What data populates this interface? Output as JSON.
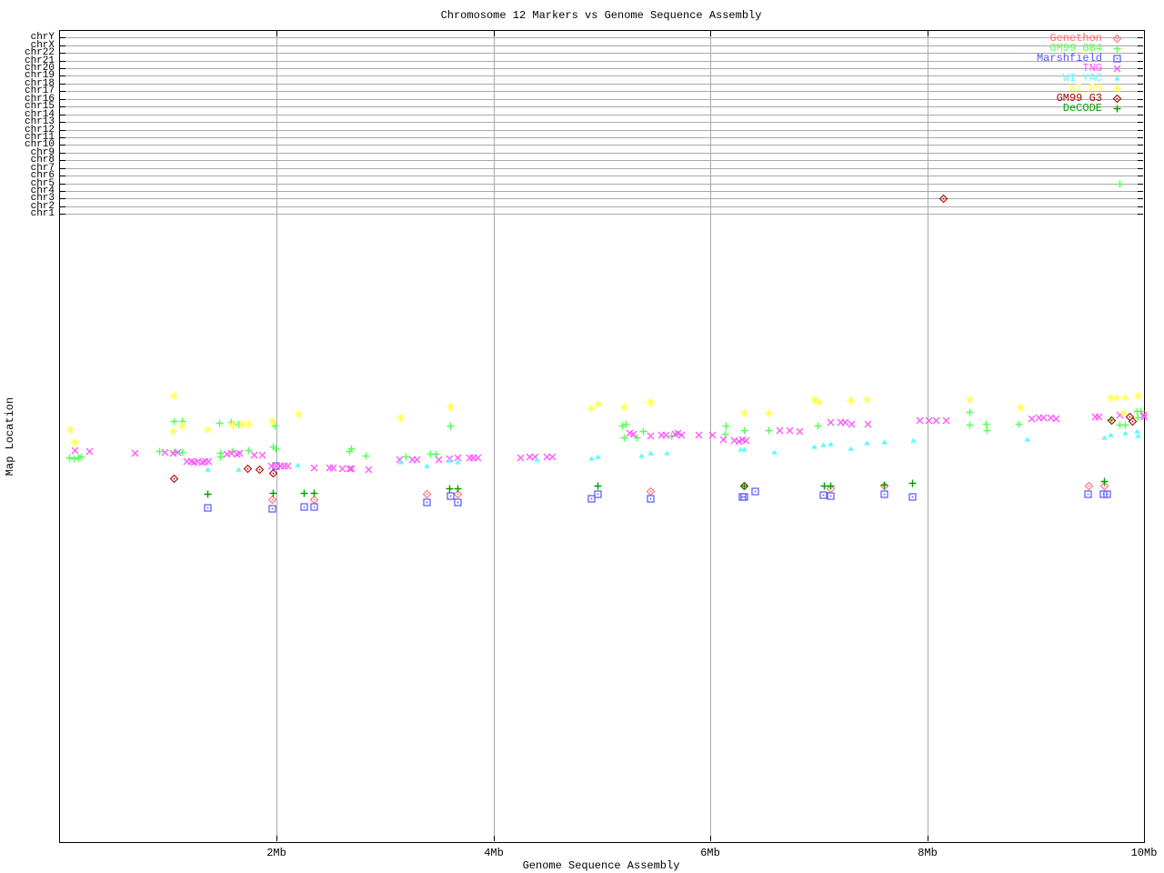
{
  "chart_data": {
    "type": "scatter",
    "title": "Chromosome 12 Markers vs Genome Sequence Assembly",
    "xlabel": "Genome Sequence Assembly",
    "ylabel": "Map Location",
    "x_unit": "Mb",
    "x_range_mb": [
      0,
      10
    ],
    "x_ticks": [
      {
        "label": "2Mb",
        "mb": 2
      },
      {
        "label": "4Mb",
        "mb": 4
      },
      {
        "label": "6Mb",
        "mb": 6
      },
      {
        "label": "8Mb",
        "mb": 8
      },
      {
        "label": "10Mb",
        "mb": 10
      }
    ],
    "x_gridlines_mb": [
      2,
      4,
      6,
      8
    ],
    "grid": true,
    "legend_position": "top-right",
    "y_note": "Upper band rows are chromosome assignments; lower scatter band has no numeric y ticks, y given as screen px",
    "chromosome_rows": [
      "chrY",
      "chrX",
      "chr22",
      "chr21",
      "chr20",
      "chr19",
      "chr18",
      "chr17",
      "chr16",
      "chr15",
      "chr14",
      "chr13",
      "chr12",
      "chr11",
      "chr10",
      "chr9",
      "chr8",
      "chr7",
      "chr6",
      "chr5",
      "chr4",
      "chr3",
      "chr2",
      "chr1"
    ],
    "series": [
      {
        "name": "Genethon",
        "color": "#ff6b6b",
        "marker": "diamond-dot",
        "points": [
          [
            1.96,
            549
          ],
          [
            2.34,
            549
          ],
          [
            3.38,
            543
          ],
          [
            3.67,
            543
          ],
          [
            5.45,
            540
          ],
          [
            7.11,
            537
          ],
          [
            7.6,
            534
          ],
          [
            9.49,
            534
          ],
          [
            9.63,
            534
          ]
        ]
      },
      {
        "name": "GM99 GB4",
        "color": "#55ff55",
        "marker": "plus",
        "points": [
          [
            0.09,
            503
          ],
          [
            0.13,
            504
          ],
          [
            0.17,
            503
          ],
          [
            0.2,
            502
          ],
          [
            0.92,
            496
          ],
          [
            1.05,
            463
          ],
          [
            1.05,
            497
          ],
          [
            1.13,
            463
          ],
          [
            1.13,
            497
          ],
          [
            1.47,
            465
          ],
          [
            1.48,
            498
          ],
          [
            1.48,
            502
          ],
          [
            1.58,
            464
          ],
          [
            1.59,
            496
          ],
          [
            1.65,
            466
          ],
          [
            1.74,
            495
          ],
          [
            1.97,
            491
          ],
          [
            1.98,
            468
          ],
          [
            1.99,
            493
          ],
          [
            2.67,
            496
          ],
          [
            2.69,
            493
          ],
          [
            2.82,
            501
          ],
          [
            3.19,
            502
          ],
          [
            3.42,
            499
          ],
          [
            3.47,
            499
          ],
          [
            3.6,
            468
          ],
          [
            5.19,
            468
          ],
          [
            5.22,
            466
          ],
          [
            5.2,
            481
          ],
          [
            5.32,
            481
          ],
          [
            5.38,
            474
          ],
          [
            5.64,
            479
          ],
          [
            6.13,
            477
          ],
          [
            6.14,
            468
          ],
          [
            6.31,
            473
          ],
          [
            6.54,
            473
          ],
          [
            6.99,
            468
          ],
          [
            8.39,
            453
          ],
          [
            8.39,
            467
          ],
          [
            8.54,
            466
          ],
          [
            8.55,
            473
          ],
          [
            8.84,
            466
          ],
          [
            9.69,
            461
          ],
          [
            9.77,
            467
          ],
          [
            9.82,
            467
          ],
          [
            9.93,
            452
          ],
          [
            9.97,
            452
          ],
          [
            9.94,
            459
          ]
        ]
      },
      {
        "name": "Marshfield",
        "color": "#5555ff",
        "marker": "square-dot",
        "points": [
          [
            1.36,
            558
          ],
          [
            1.96,
            559
          ],
          [
            1.99,
            512
          ],
          [
            2.25,
            557
          ],
          [
            2.34,
            557
          ],
          [
            3.38,
            552
          ],
          [
            3.6,
            545
          ],
          [
            3.67,
            552
          ],
          [
            4.9,
            548
          ],
          [
            4.96,
            543
          ],
          [
            5.45,
            548
          ],
          [
            6.29,
            546
          ],
          [
            6.31,
            546
          ],
          [
            6.41,
            540
          ],
          [
            7.04,
            544
          ],
          [
            7.11,
            545
          ],
          [
            7.6,
            543
          ],
          [
            7.86,
            546
          ],
          [
            9.48,
            543
          ],
          [
            9.62,
            543
          ],
          [
            9.66,
            543
          ]
        ]
      },
      {
        "name": "TNG",
        "color": "#ff55ff",
        "marker": "x",
        "points": [
          [
            0.14,
            495
          ],
          [
            0.27,
            496
          ],
          [
            0.69,
            498
          ],
          [
            0.97,
            497
          ],
          [
            1.04,
            498
          ],
          [
            1.09,
            497
          ],
          [
            1.17,
            507
          ],
          [
            1.21,
            507
          ],
          [
            1.24,
            508
          ],
          [
            1.27,
            507
          ],
          [
            1.31,
            508
          ],
          [
            1.34,
            507
          ],
          [
            1.37,
            507
          ],
          [
            1.54,
            499
          ],
          [
            1.58,
            498
          ],
          [
            1.63,
            499
          ],
          [
            1.66,
            498
          ],
          [
            1.79,
            500
          ],
          [
            1.87,
            500
          ],
          [
            1.95,
            512
          ],
          [
            1.99,
            512
          ],
          [
            2.03,
            512
          ],
          [
            2.07,
            512
          ],
          [
            2.1,
            512
          ],
          [
            2.34,
            514
          ],
          [
            2.49,
            514
          ],
          [
            2.52,
            514
          ],
          [
            2.6,
            515
          ],
          [
            2.67,
            515
          ],
          [
            2.69,
            515
          ],
          [
            2.85,
            516
          ],
          [
            3.13,
            505
          ],
          [
            3.25,
            505
          ],
          [
            3.29,
            505
          ],
          [
            3.49,
            505
          ],
          [
            3.59,
            504
          ],
          [
            3.67,
            503
          ],
          [
            3.78,
            503
          ],
          [
            3.81,
            503
          ],
          [
            3.85,
            503
          ],
          [
            4.25,
            503
          ],
          [
            4.33,
            502
          ],
          [
            4.38,
            502
          ],
          [
            4.49,
            502
          ],
          [
            4.54,
            502
          ],
          [
            5.25,
            476
          ],
          [
            5.29,
            477
          ],
          [
            5.45,
            479
          ],
          [
            5.55,
            478
          ],
          [
            5.59,
            478
          ],
          [
            5.67,
            477
          ],
          [
            5.7,
            476
          ],
          [
            5.73,
            478
          ],
          [
            5.89,
            478
          ],
          [
            6.02,
            478
          ],
          [
            6.12,
            483
          ],
          [
            6.22,
            484
          ],
          [
            6.26,
            485
          ],
          [
            6.29,
            483
          ],
          [
            6.33,
            484
          ],
          [
            6.64,
            473
          ],
          [
            6.73,
            473
          ],
          [
            6.82,
            474
          ],
          [
            7.11,
            464
          ],
          [
            7.2,
            464
          ],
          [
            7.24,
            464
          ],
          [
            7.3,
            466
          ],
          [
            7.45,
            466
          ],
          [
            7.93,
            462
          ],
          [
            8.01,
            462
          ],
          [
            8.08,
            462
          ],
          [
            8.17,
            462
          ],
          [
            8.96,
            460
          ],
          [
            9.03,
            459
          ],
          [
            9.07,
            459
          ],
          [
            9.14,
            459
          ],
          [
            9.19,
            460
          ],
          [
            9.55,
            458
          ],
          [
            9.58,
            458
          ],
          [
            9.77,
            456
          ],
          [
            9.99,
            456
          ],
          [
            10.0,
            458
          ]
        ]
      },
      {
        "name": "WI YAC",
        "color": "#55ffff",
        "marker": "triangle",
        "points": [
          [
            1.36,
            516
          ],
          [
            1.65,
            516
          ],
          [
            2.19,
            511
          ],
          [
            3.14,
            508
          ],
          [
            3.38,
            512
          ],
          [
            3.59,
            506
          ],
          [
            3.67,
            508
          ],
          [
            4.4,
            505
          ],
          [
            4.9,
            504
          ],
          [
            4.96,
            502
          ],
          [
            5.36,
            501
          ],
          [
            5.45,
            498
          ],
          [
            5.6,
            498
          ],
          [
            6.28,
            494
          ],
          [
            6.31,
            494
          ],
          [
            6.59,
            497
          ],
          [
            6.96,
            491
          ],
          [
            7.04,
            489
          ],
          [
            7.11,
            488
          ],
          [
            7.29,
            493
          ],
          [
            7.44,
            487
          ],
          [
            7.6,
            486
          ],
          [
            7.87,
            484
          ],
          [
            8.92,
            483
          ],
          [
            9.63,
            481
          ],
          [
            9.69,
            478
          ],
          [
            9.82,
            476
          ],
          [
            9.93,
            474
          ],
          [
            9.94,
            479
          ]
        ]
      },
      {
        "name": "WI RH",
        "color": "#ffff55",
        "marker": "star",
        "points": [
          [
            0.1,
            472
          ],
          [
            0.14,
            486
          ],
          [
            1.04,
            474
          ],
          [
            1.05,
            435
          ],
          [
            1.13,
            468
          ],
          [
            1.36,
            472
          ],
          [
            1.59,
            467
          ],
          [
            1.68,
            466
          ],
          [
            1.74,
            466
          ],
          [
            1.96,
            463
          ],
          [
            2.2,
            455
          ],
          [
            3.14,
            459
          ],
          [
            3.6,
            447
          ],
          [
            4.9,
            449
          ],
          [
            4.96,
            444
          ],
          [
            5.2,
            447
          ],
          [
            5.45,
            442
          ],
          [
            6.31,
            454
          ],
          [
            6.54,
            454
          ],
          [
            6.96,
            439
          ],
          [
            7.0,
            442
          ],
          [
            7.29,
            440
          ],
          [
            7.44,
            439
          ],
          [
            8.39,
            439
          ],
          [
            8.86,
            448
          ],
          [
            9.69,
            437
          ],
          [
            9.75,
            437
          ],
          [
            9.81,
            454
          ],
          [
            9.82,
            437
          ],
          [
            9.94,
            435
          ]
        ]
      },
      {
        "name": "GM99 G3",
        "color": "#aa0000",
        "marker": "diamond-dot",
        "points": [
          [
            1.05,
            526
          ],
          [
            1.73,
            515
          ],
          [
            1.84,
            516
          ],
          [
            1.97,
            520
          ],
          [
            6.31,
            534
          ],
          [
            9.7,
            462
          ],
          [
            9.87,
            458
          ],
          [
            9.89,
            463
          ]
        ]
      },
      {
        "name": "DeCODE",
        "color": "#00a000",
        "marker": "plus",
        "points": [
          [
            1.36,
            543
          ],
          [
            1.97,
            542
          ],
          [
            2.25,
            542
          ],
          [
            2.34,
            542
          ],
          [
            3.59,
            537
          ],
          [
            3.67,
            537
          ],
          [
            4.96,
            534
          ],
          [
            6.31,
            534
          ],
          [
            7.05,
            534
          ],
          [
            7.11,
            534
          ],
          [
            7.6,
            533
          ],
          [
            7.86,
            531
          ],
          [
            9.63,
            529
          ]
        ]
      }
    ],
    "chromosome_band_points": [
      {
        "series": "GM99 GB4",
        "chromosome": "chr5",
        "x_mb": 9.77
      },
      {
        "series": "GM99 G3",
        "chromosome": "chr3",
        "x_mb": 8.15
      }
    ]
  }
}
